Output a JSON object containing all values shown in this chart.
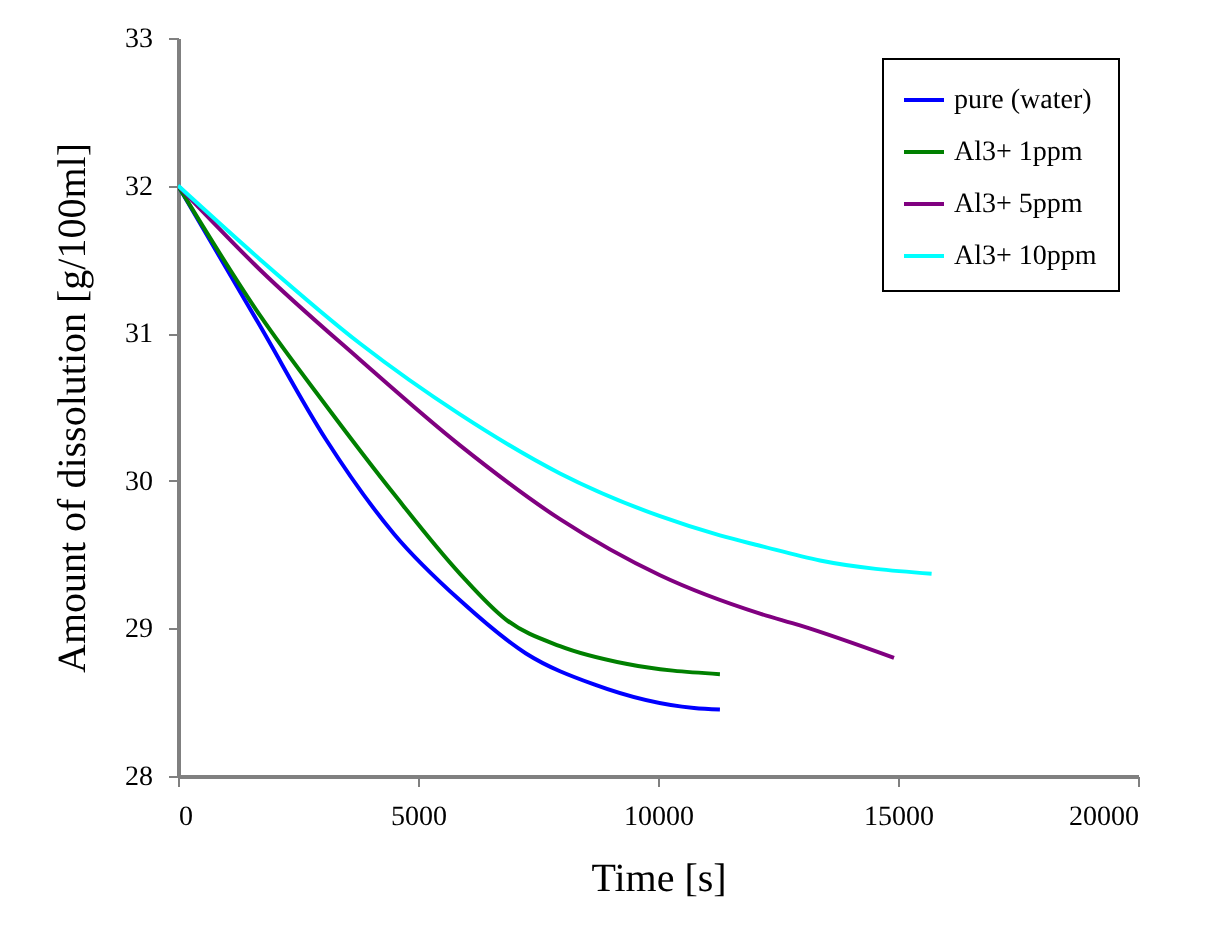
{
  "chart_data": {
    "type": "line",
    "xlabel": "Time [s]",
    "ylabel": "Amount of dissolution [g/100ml]",
    "xlim": [
      0,
      20000
    ],
    "xticks": [
      0,
      5000,
      10000,
      15000,
      20000
    ],
    "ylim": [
      28,
      33
    ],
    "yticks": [
      28,
      29,
      30,
      31,
      32,
      33
    ],
    "grid": false,
    "legend": "top right",
    "marker": "none",
    "line_style": "solid",
    "series": [
      {
        "name": "pure (water)",
        "color": "#0000ff",
        "x": [
          0,
          1708,
          3083,
          4500,
          5875,
          7250,
          8667,
          10750,
          11290
        ],
        "values": [
          32,
          31.05,
          30.28,
          29.64,
          29.19,
          28.83,
          28.62,
          28.46,
          28.45
        ]
      },
      {
        "name": "Al3+ 1ppm",
        "color": "#008000",
        "x": [
          0,
          1708,
          3083,
          4500,
          5875,
          6833,
          7958,
          9333,
          11290
        ],
        "values": [
          32,
          31.12,
          30.51,
          29.91,
          29.37,
          29.06,
          28.88,
          28.76,
          28.69
        ]
      },
      {
        "name": "Al3+ 5ppm",
        "color": "#800080",
        "x": [
          0,
          1708,
          3792,
          5875,
          7958,
          10042,
          12125,
          12958,
          14917
        ],
        "values": [
          32,
          31.43,
          30.82,
          30.24,
          29.74,
          29.36,
          29.1,
          29.02,
          28.8
        ]
      },
      {
        "name": "Al3+ 10ppm",
        "color": "#00ffff",
        "x": [
          0,
          1708,
          3792,
          5875,
          7958,
          10042,
          11290,
          12125,
          13375,
          15700
        ],
        "values": [
          32,
          31.5,
          30.93,
          30.45,
          30.05,
          29.76,
          29.63,
          29.56,
          29.46,
          29.37
        ]
      }
    ]
  }
}
